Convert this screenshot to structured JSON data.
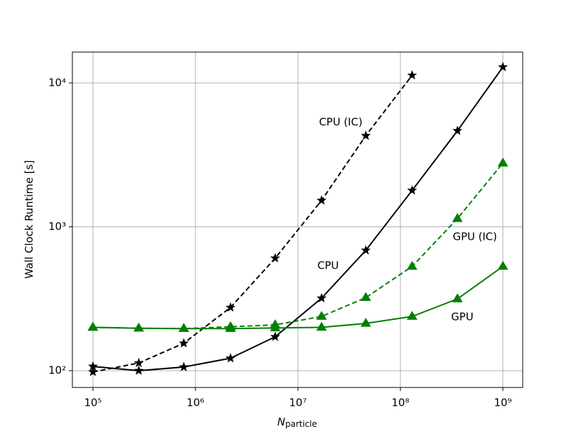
{
  "chart_data": {
    "type": "line",
    "xlabel": {
      "main": "N",
      "sub": "particle"
    },
    "ylabel": "Wall Clock Runtime [s]",
    "xscale": "log",
    "yscale": "log",
    "grid": true,
    "xlim": [
      63000,
      1560000000
    ],
    "ylim": [
      76.4,
      16400
    ],
    "xticks": [
      {
        "value": 100000,
        "label": "10⁵"
      },
      {
        "value": 1000000,
        "label": "10⁶"
      },
      {
        "value": 10000000,
        "label": "10⁷"
      },
      {
        "value": 100000000,
        "label": "10⁸"
      },
      {
        "value": 1000000000,
        "label": "10⁹"
      }
    ],
    "yticks": [
      {
        "value": 100,
        "label": "10²"
      },
      {
        "value": 1000,
        "label": "10³"
      },
      {
        "value": 10000,
        "label": "10⁴"
      }
    ],
    "series": [
      {
        "name": "CPU",
        "color": "#000000",
        "marker": "star",
        "dashed": false,
        "x": [
          100000,
          280000,
          770000,
          2200000,
          6000000,
          17000000,
          46000000,
          130000000,
          360000000,
          1000000000
        ],
        "values": [
          107,
          100,
          106,
          122,
          172,
          319,
          686,
          1790,
          4650,
          12900
        ]
      },
      {
        "name": "CPU (IC)",
        "color": "#000000",
        "marker": "star",
        "dashed": true,
        "x": [
          100000,
          280000,
          770000,
          2200000,
          6000000,
          17000000,
          46000000,
          130000000
        ],
        "values": [
          98,
          113,
          155,
          275,
          605,
          1525,
          4300,
          11300
        ]
      },
      {
        "name": "GPU",
        "color": "#008000",
        "marker": "triangle",
        "dashed": false,
        "x": [
          100000,
          280000,
          770000,
          2200000,
          6000000,
          17000000,
          46000000,
          130000000,
          360000000,
          1000000000
        ],
        "values": [
          200,
          197,
          196,
          196,
          198,
          200,
          213,
          238,
          315,
          530
        ]
      },
      {
        "name": "GPU (IC)",
        "color": "#008000",
        "marker": "triangle",
        "dashed": true,
        "x": [
          100000,
          280000,
          770000,
          2200000,
          6000000,
          17000000,
          46000000,
          130000000,
          360000000,
          1000000000
        ],
        "values": [
          200,
          197,
          196,
          202,
          208,
          238,
          322,
          530,
          1140,
          2770
        ]
      }
    ]
  }
}
